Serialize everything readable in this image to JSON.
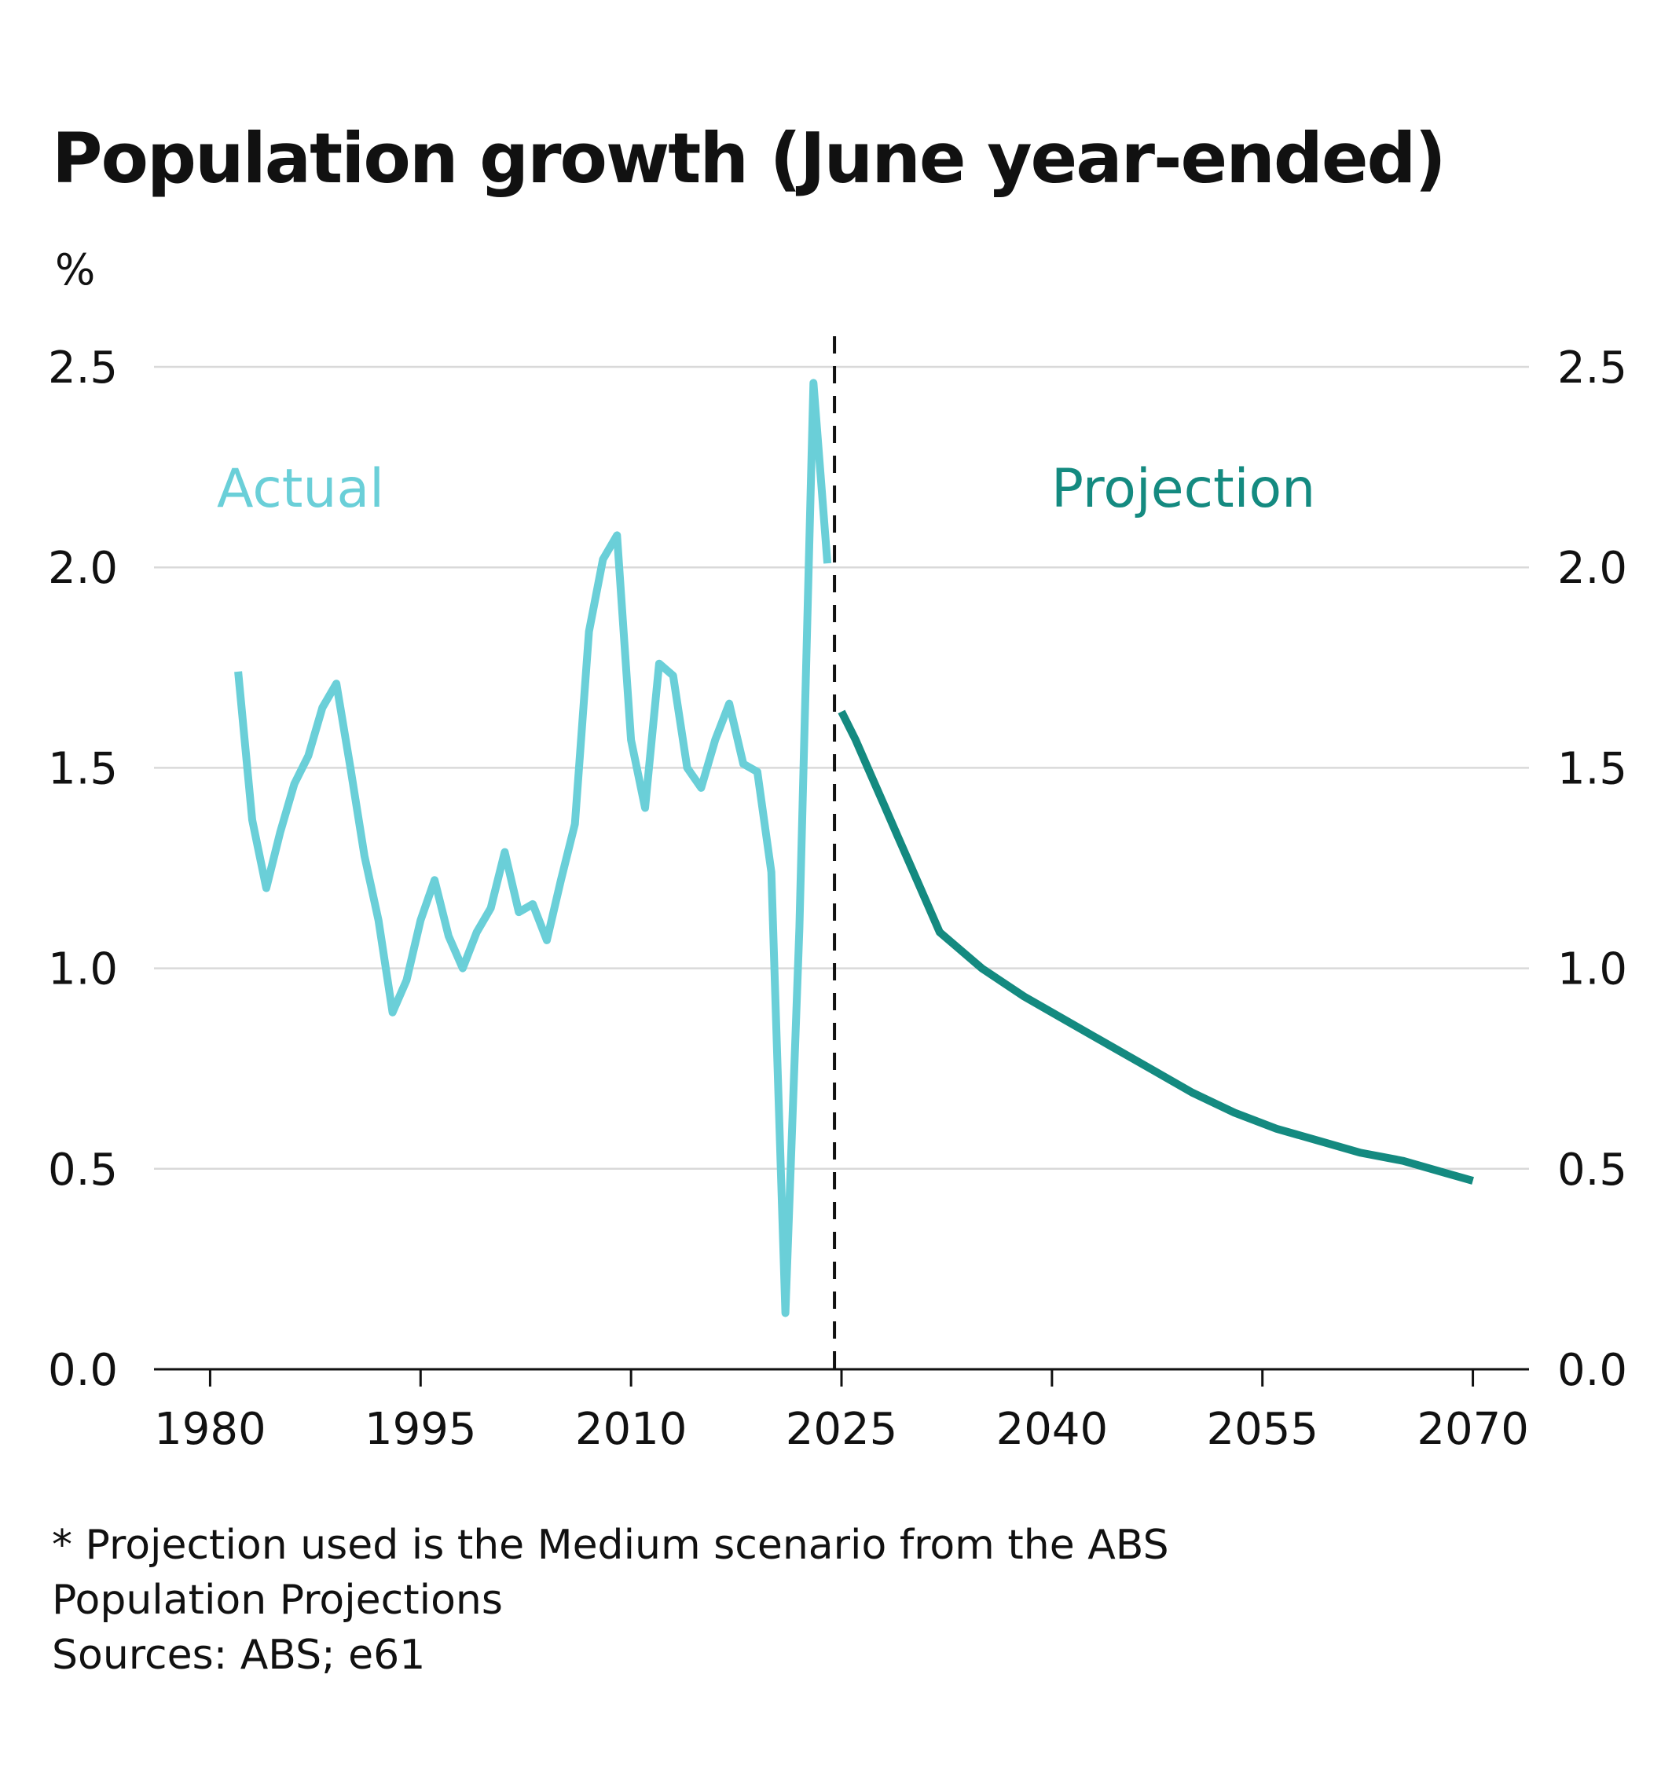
{
  "title": "Population growth (June year-ended)",
  "footnote": {
    "line1": "* Projection used is the Medium scenario from the ABS",
    "line2": "Population Projections",
    "line3": "Sources: ABS; e61"
  },
  "chart_data": {
    "type": "line",
    "title": "Population growth (June year-ended)",
    "ylabel": "%",
    "xlabel": "",
    "xlim": [
      1976,
      2074
    ],
    "ylim": [
      0,
      2.5
    ],
    "x_ticks": [
      1980,
      1995,
      2010,
      2025,
      2040,
      2055,
      2070
    ],
    "x_tick_labels": [
      "1980",
      "1995",
      "2010",
      "2025",
      "2040",
      "2055",
      "2070"
    ],
    "y_ticks": [
      0,
      0.5,
      1,
      1.5,
      2,
      2.5
    ],
    "y_tick_labels": [
      "0.0",
      "0.5",
      "1.0",
      "1.5",
      "2.0",
      "2.5"
    ],
    "grid": true,
    "divider_x": 2024.5,
    "annotations": [
      {
        "text": "Actual",
        "series": "actual"
      },
      {
        "text": "Projection",
        "series": "projection"
      }
    ],
    "series": [
      {
        "key": "actual",
        "color": "#6acfd8",
        "x": [
          1982,
          1983,
          1984,
          1985,
          1986,
          1987,
          1988,
          1989,
          1990,
          1991,
          1992,
          1993,
          1994,
          1995,
          1996,
          1997,
          1998,
          1999,
          2000,
          2001,
          2002,
          2003,
          2004,
          2005,
          2006,
          2007,
          2008,
          2009,
          2010,
          2011,
          2012,
          2013,
          2014,
          2015,
          2016,
          2017,
          2018,
          2019,
          2020,
          2021,
          2022,
          2023,
          2024
        ],
        "values": [
          1.74,
          1.37,
          1.2,
          1.34,
          1.46,
          1.53,
          1.65,
          1.71,
          1.5,
          1.28,
          1.12,
          0.89,
          0.97,
          1.12,
          1.22,
          1.08,
          1.0,
          1.09,
          1.15,
          1.29,
          1.14,
          1.16,
          1.07,
          1.22,
          1.36,
          1.84,
          2.02,
          2.08,
          1.57,
          1.4,
          1.76,
          1.73,
          1.5,
          1.45,
          1.57,
          1.66,
          1.51,
          1.49,
          1.24,
          0.14,
          1.1,
          2.46,
          2.01
        ]
      },
      {
        "key": "projection",
        "color": "#148a80",
        "x": [
          2025,
          2026,
          2027,
          2028,
          2029,
          2030,
          2031,
          2032,
          2033,
          2035,
          2038,
          2041,
          2044,
          2047,
          2050,
          2053,
          2056,
          2059,
          2062,
          2065,
          2068,
          2070
        ],
        "values": [
          1.64,
          1.57,
          1.49,
          1.41,
          1.33,
          1.25,
          1.17,
          1.09,
          1.06,
          1.0,
          0.93,
          0.87,
          0.81,
          0.75,
          0.69,
          0.64,
          0.6,
          0.57,
          0.54,
          0.52,
          0.49,
          0.47
        ]
      }
    ]
  }
}
